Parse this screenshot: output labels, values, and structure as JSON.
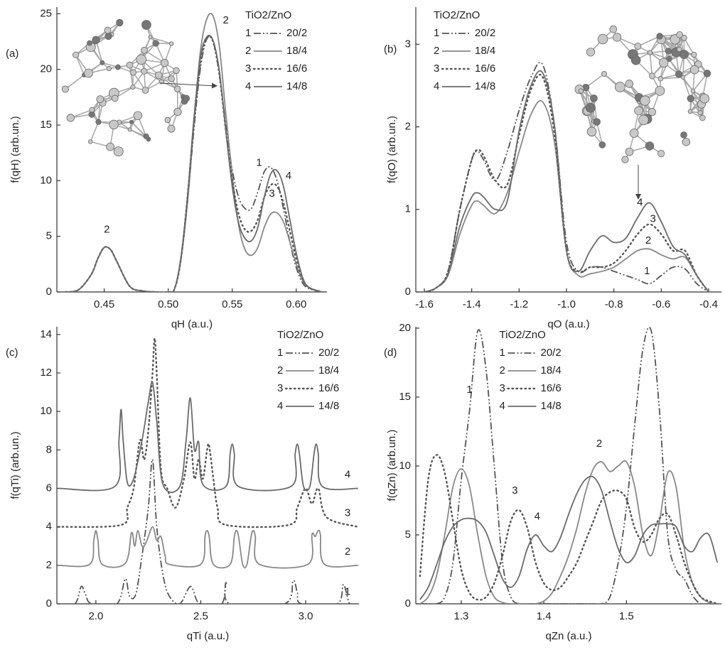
{
  "chart_data": [
    {
      "type": "line",
      "panel_label": "(a)",
      "x_label": "qH (a.u.)",
      "y_label": "f(qH) (arb.un.)",
      "xlim": [
        0.413,
        0.624
      ],
      "ylim": [
        0,
        25.6
      ],
      "xticks": [
        0.45,
        {
          "value": 0.5,
          "label": "0.50"
        },
        0.55,
        {
          "value": 0.6,
          "label": "0.60"
        }
      ],
      "yticks": [
        0,
        5,
        10,
        15,
        20,
        25
      ],
      "legend_title": "TiO2/ZnO",
      "legend_corner": "upper right",
      "x": [
        0.42,
        0.43,
        0.44,
        0.445,
        0.45,
        0.455,
        0.46,
        0.47,
        0.48,
        0.49,
        0.5,
        0.505,
        0.51,
        0.515,
        0.52,
        0.525,
        0.53,
        0.535,
        0.54,
        0.545,
        0.55,
        0.555,
        0.56,
        0.565,
        0.57,
        0.575,
        0.58,
        0.585,
        0.59,
        0.595,
        0.6,
        0.605,
        0.61,
        0.62
      ],
      "series": [
        {
          "label": "1",
          "name": "20/2",
          "color": "#555555",
          "style": "dashdot",
          "values": [
            0,
            0.2,
            1.6,
            3.0,
            4.0,
            3.8,
            2.7,
            0.5,
            0.1,
            0,
            0,
            0.3,
            3,
            8,
            14.5,
            20,
            22.7,
            22.5,
            19.5,
            15,
            11,
            8.5,
            7.5,
            7.5,
            9,
            10.8,
            11.2,
            10,
            7.5,
            4.5,
            2.2,
            0.8,
            0.3,
            0
          ]
        },
        {
          "label": "2",
          "name": "18/4",
          "color": "#888888",
          "style": "solid",
          "values": [
            0,
            0.2,
            1.6,
            3.0,
            4.0,
            3.8,
            2.7,
            0.5,
            0.1,
            0,
            0,
            0.3,
            3,
            8,
            15,
            21.5,
            24.5,
            24.8,
            22,
            16,
            10.5,
            6,
            3.8,
            3.3,
            4,
            5.8,
            7,
            7.1,
            6.3,
            4.5,
            2.5,
            1,
            0.4,
            0
          ]
        },
        {
          "label": "3",
          "name": "16/6",
          "color": "#555555",
          "style": "dotted",
          "values": [
            0,
            0.2,
            1.6,
            3.0,
            4.0,
            3.8,
            2.7,
            0.5,
            0.1,
            0,
            0,
            0.3,
            3,
            8.5,
            15,
            20.5,
            22.8,
            22.5,
            19.5,
            14.5,
            10,
            7,
            5.6,
            5.5,
            6.5,
            8.5,
            9.6,
            9.5,
            8,
            5.5,
            3,
            1.2,
            0.4,
            0
          ]
        },
        {
          "label": "4",
          "name": "14/8",
          "color": "#6a6a6a",
          "style": "solid",
          "values": [
            0,
            0.2,
            1.6,
            3.0,
            4.0,
            3.8,
            2.7,
            0.5,
            0.1,
            0,
            0,
            0.3,
            3.2,
            8.5,
            15.5,
            21,
            22.9,
            22.6,
            19.8,
            14.5,
            9.5,
            6.2,
            4.8,
            4.6,
            5.8,
            8.5,
            10.6,
            10.9,
            9.5,
            6.5,
            3.5,
            1.3,
            0.4,
            0
          ]
        }
      ],
      "annotations": [
        {
          "text": "2",
          "x": 0.452,
          "y": 5.6
        },
        {
          "text": "2",
          "x": 0.545,
          "y": 24.4
        },
        {
          "text": "1",
          "x": 0.571,
          "y": 11.6
        },
        {
          "text": "3",
          "x": 0.581,
          "y": 8.8
        },
        {
          "text": "4",
          "x": 0.594,
          "y": 10.4
        }
      ]
    },
    {
      "type": "line",
      "panel_label": "(b)",
      "x_label": "qO (a.u.)",
      "y_label": "f(qO) (arb.un.)",
      "xlim": [
        -1.636,
        -0.346
      ],
      "ylim": [
        0,
        3.45
      ],
      "xticks": [
        -1.6,
        -1.4,
        -1.2,
        {
          "value": -1,
          "label": "-1.0"
        },
        -0.8,
        -0.6,
        -0.4
      ],
      "yticks": [
        0,
        1,
        2,
        3
      ],
      "legend_title": "TiO2/ZnO",
      "legend_corner": "upper left",
      "x": [
        -1.6,
        -1.55,
        -1.5,
        -1.45,
        -1.4,
        -1.375,
        -1.35,
        -1.3,
        -1.25,
        -1.2,
        -1.15,
        -1.1,
        -1.05,
        -1.0,
        -0.95,
        -0.9,
        -0.85,
        -0.8,
        -0.75,
        -0.7,
        -0.65,
        -0.6,
        -0.55,
        -0.5,
        -0.45,
        -0.4
      ],
      "series": [
        {
          "label": "1",
          "name": "20/2",
          "color": "#555555",
          "style": "dashdot",
          "values": [
            0,
            0.05,
            0.25,
            1.0,
            1.6,
            1.7,
            1.6,
            1.35,
            1.7,
            2.2,
            2.6,
            2.75,
            2.0,
            0.6,
            0.25,
            0.3,
            0.3,
            0.25,
            0.2,
            0.15,
            0.1,
            0.2,
            0.3,
            0.28,
            0.1,
            0
          ]
        },
        {
          "label": "2",
          "name": "18/4",
          "color": "#888888",
          "style": "solid",
          "values": [
            0,
            0.05,
            0.2,
            0.7,
            1.05,
            1.1,
            1.05,
            0.95,
            1.2,
            1.7,
            2.15,
            2.3,
            1.8,
            0.5,
            0.2,
            0.22,
            0.25,
            0.3,
            0.4,
            0.5,
            0.52,
            0.45,
            0.4,
            0.42,
            0.2,
            0
          ]
        },
        {
          "label": "3",
          "name": "16/6",
          "color": "#555555",
          "style": "dotted",
          "values": [
            0,
            0.05,
            0.25,
            1.0,
            1.6,
            1.72,
            1.65,
            1.35,
            1.3,
            1.9,
            2.45,
            2.6,
            1.9,
            0.5,
            0.25,
            0.3,
            0.3,
            0.35,
            0.5,
            0.7,
            0.82,
            0.7,
            0.5,
            0.5,
            0.2,
            0
          ]
        },
        {
          "label": "4",
          "name": "14/8",
          "color": "#6a6a6a",
          "style": "solid",
          "values": [
            0,
            0.05,
            0.22,
            0.8,
            1.15,
            1.2,
            1.15,
            1.0,
            1.1,
            1.95,
            2.5,
            2.65,
            2.0,
            0.5,
            0.25,
            0.5,
            0.68,
            0.6,
            0.65,
            0.9,
            1.08,
            0.85,
            0.55,
            0.45,
            0.2,
            0
          ]
        }
      ],
      "annotations": [
        {
          "text": "4",
          "x": -0.69,
          "y": 1.08
        },
        {
          "text": "3",
          "x": -0.635,
          "y": 0.88
        },
        {
          "text": "2",
          "x": -0.655,
          "y": 0.62
        },
        {
          "text": "1",
          "x": -0.66,
          "y": 0.25
        }
      ]
    },
    {
      "type": "line",
      "panel_label": "(c)",
      "x_label": "qTi (a.u.)",
      "y_label": "f(qTi) (arb.un.)",
      "xlim": [
        1.814,
        3.254
      ],
      "ylim": [
        0,
        14.4
      ],
      "xticks": [
        {
          "value": 2,
          "label": "2.0"
        },
        2.5,
        {
          "value": 3,
          "label": "3.0"
        }
      ],
      "yticks": [
        0,
        2,
        4,
        6,
        8,
        10,
        12,
        14
      ],
      "legend_title": "TiO2/ZnO",
      "legend_corner": "upper right",
      "series": [
        {
          "label": "1",
          "name": "20/2",
          "color": "#555555",
          "style": "dashdot",
          "x": [
            1.82,
            1.9,
            1.93,
            1.95,
            1.98,
            2.1,
            2.14,
            2.16,
            2.19,
            2.22,
            2.25,
            2.27,
            2.29,
            2.32,
            2.35,
            2.4,
            2.45,
            2.48,
            2.5,
            2.6,
            2.62,
            2.64,
            2.9,
            2.94,
            2.96,
            2.98,
            3.15,
            3.18,
            3.21,
            3.25
          ],
          "values": [
            0,
            0,
            0.9,
            0.5,
            0,
            0,
            1.3,
            0.4,
            0.5,
            2.5,
            5,
            7.5,
            4,
            1.5,
            0.4,
            0,
            0.9,
            0.2,
            0,
            0,
            1.1,
            0,
            0,
            1.2,
            0.6,
            0,
            0,
            1.0,
            0,
            0
          ]
        },
        {
          "label": "2",
          "name": "18/4",
          "color": "#888888",
          "style": "solid",
          "x": [
            1.82,
            1.97,
            1.99,
            2.0,
            2.01,
            2.03,
            2.14,
            2.17,
            2.185,
            2.2,
            2.22,
            2.24,
            2.27,
            2.29,
            2.31,
            2.33,
            2.35,
            2.5,
            2.52,
            2.53,
            2.54,
            2.56,
            2.64,
            2.66,
            2.67,
            2.68,
            2.7,
            2.72,
            2.74,
            2.75,
            2.76,
            2.78,
            3.01,
            3.03,
            3.045,
            3.06,
            3.07,
            3.09,
            3.25
          ],
          "values": [
            2,
            2.05,
            3.3,
            3.8,
            3.3,
            2.05,
            2.1,
            3.7,
            3.0,
            3.8,
            3.0,
            3.2,
            4.0,
            3.3,
            3.5,
            2.5,
            2.05,
            2.05,
            3.5,
            3.8,
            3.5,
            2.05,
            2.05,
            3.5,
            3.8,
            3.5,
            2.05,
            2.05,
            3.5,
            3.8,
            3.5,
            2.05,
            2.05,
            3.6,
            3.5,
            3.8,
            3.6,
            2.05,
            2
          ]
        },
        {
          "label": "3",
          "name": "16/6",
          "color": "#555555",
          "style": "dotted",
          "x": [
            1.82,
            2.12,
            2.15,
            2.18,
            2.21,
            2.23,
            2.25,
            2.27,
            2.28,
            2.29,
            2.31,
            2.34,
            2.38,
            2.42,
            2.45,
            2.47,
            2.49,
            2.51,
            2.53,
            2.54,
            2.56,
            2.58,
            2.62,
            2.92,
            2.96,
            3.0,
            3.03,
            3.06,
            3.1,
            3.25
          ],
          "values": [
            4,
            4.1,
            5,
            6,
            8.5,
            7.5,
            9,
            12,
            13.8,
            12,
            7,
            6,
            5,
            6.5,
            8.4,
            6.5,
            7.5,
            6.5,
            8.0,
            8.2,
            6.5,
            5,
            4.1,
            4.1,
            5,
            6,
            5.2,
            6.0,
            4.5,
            4
          ]
        },
        {
          "label": "4",
          "name": "14/8",
          "color": "#6a6a6a",
          "style": "solid",
          "x": [
            1.82,
            2.09,
            2.11,
            2.12,
            2.13,
            2.15,
            2.18,
            2.22,
            2.25,
            2.27,
            2.29,
            2.32,
            2.4,
            2.43,
            2.45,
            2.47,
            2.49,
            2.51,
            2.62,
            2.64,
            2.65,
            2.66,
            2.68,
            2.93,
            2.95,
            2.96,
            2.97,
            2.99,
            3.02,
            3.04,
            3.05,
            3.06,
            3.08,
            3.25
          ],
          "values": [
            6,
            6.1,
            8.5,
            10.1,
            8.5,
            6.3,
            6.5,
            8.5,
            10.5,
            11.5,
            9.5,
            6.2,
            6.1,
            8.5,
            10.7,
            8,
            8.4,
            6.2,
            6.1,
            7.8,
            8.3,
            7.8,
            6.1,
            6.1,
            7.8,
            8.3,
            7.8,
            6.1,
            6.1,
            7.8,
            8.3,
            7.8,
            6.1,
            6
          ]
        }
      ],
      "annotations": [
        {
          "text": "4",
          "x": 3.2,
          "y": 6.7
        },
        {
          "text": "3",
          "x": 3.2,
          "y": 4.7
        },
        {
          "text": "2",
          "x": 3.2,
          "y": 2.7
        },
        {
          "text": "1",
          "x": 3.2,
          "y": 0.6
        }
      ]
    },
    {
      "type": "line",
      "panel_label": "(d)",
      "x_label": "qZn (a.u.)",
      "y_label": "f(qZn) (arb.un.)",
      "xlim": [
        1.245,
        1.615
      ],
      "ylim": [
        0,
        20.1
      ],
      "xticks": [
        1.3,
        1.4,
        1.5
      ],
      "yticks": [
        0,
        5,
        10,
        15,
        20
      ],
      "legend_title": "TiO2/ZnO",
      "legend_corner": "upper center",
      "x": [
        1.25,
        1.26,
        1.27,
        1.28,
        1.29,
        1.3,
        1.31,
        1.32,
        1.33,
        1.34,
        1.35,
        1.36,
        1.37,
        1.38,
        1.39,
        1.4,
        1.41,
        1.42,
        1.43,
        1.44,
        1.45,
        1.46,
        1.47,
        1.48,
        1.49,
        1.5,
        1.51,
        1.52,
        1.53,
        1.54,
        1.55,
        1.56,
        1.57,
        1.58,
        1.59,
        1.6,
        1.61
      ],
      "series": [
        {
          "label": "1",
          "name": "20/2",
          "color": "#555555",
          "style": "dashdot",
          "values": [
            0,
            0,
            0,
            0.5,
            3,
            9,
            14,
            19.8,
            17,
            10,
            3,
            0.5,
            0,
            0,
            0,
            0,
            0,
            0,
            0,
            0,
            0,
            0,
            0,
            0.5,
            3,
            7,
            13,
            18.5,
            19.8,
            14,
            5,
            2.5,
            1.8,
            0.6,
            0,
            0,
            0
          ]
        },
        {
          "label": "2",
          "name": "18/4",
          "color": "#888888",
          "style": "solid",
          "values": [
            0,
            0.5,
            2,
            5,
            8.5,
            9.8,
            8.5,
            5,
            2,
            0.5,
            0.1,
            0,
            0,
            0,
            0,
            0.2,
            0.8,
            2,
            3.5,
            5.5,
            8,
            9.8,
            10.3,
            9.6,
            10,
            10.3,
            8.5,
            5,
            3.5,
            6,
            9.5,
            8.5,
            4,
            1.5,
            0.5,
            0.1,
            0
          ]
        },
        {
          "label": "3",
          "name": "16/6",
          "color": "#555555",
          "style": "dotted",
          "values": [
            2,
            9,
            10.8,
            9.5,
            6,
            2.5,
            0.8,
            0.3,
            0.5,
            1.5,
            3.5,
            6,
            6.8,
            5.5,
            3,
            1.5,
            1.0,
            1.2,
            2,
            3,
            4.5,
            6,
            7.5,
            8.1,
            8.2,
            7.6,
            5.5,
            4.5,
            5,
            6.2,
            6.5,
            5,
            3,
            1.5,
            0.5,
            0.2,
            0
          ]
        },
        {
          "label": "4",
          "name": "14/8",
          "color": "#6a6a6a",
          "style": "solid",
          "values": [
            0.3,
            1.2,
            2.8,
            4.5,
            5.6,
            6.1,
            6.2,
            6.0,
            5.2,
            3.5,
            1.8,
            1.2,
            2,
            4,
            5,
            4.2,
            3.8,
            4.8,
            6.5,
            8,
            9,
            9.2,
            8.2,
            6,
            4,
            3,
            3.5,
            5,
            5.7,
            5.8,
            5.8,
            5.6,
            4.2,
            3.8,
            4.8,
            5.0,
            3
          ]
        }
      ],
      "annotations": [
        {
          "text": "1",
          "x": 1.31,
          "y": 15.5
        },
        {
          "text": "3",
          "x": 1.365,
          "y": 8.2
        },
        {
          "text": "4",
          "x": 1.392,
          "y": 6.3
        },
        {
          "text": "2",
          "x": 1.467,
          "y": 11.6
        }
      ]
    }
  ]
}
